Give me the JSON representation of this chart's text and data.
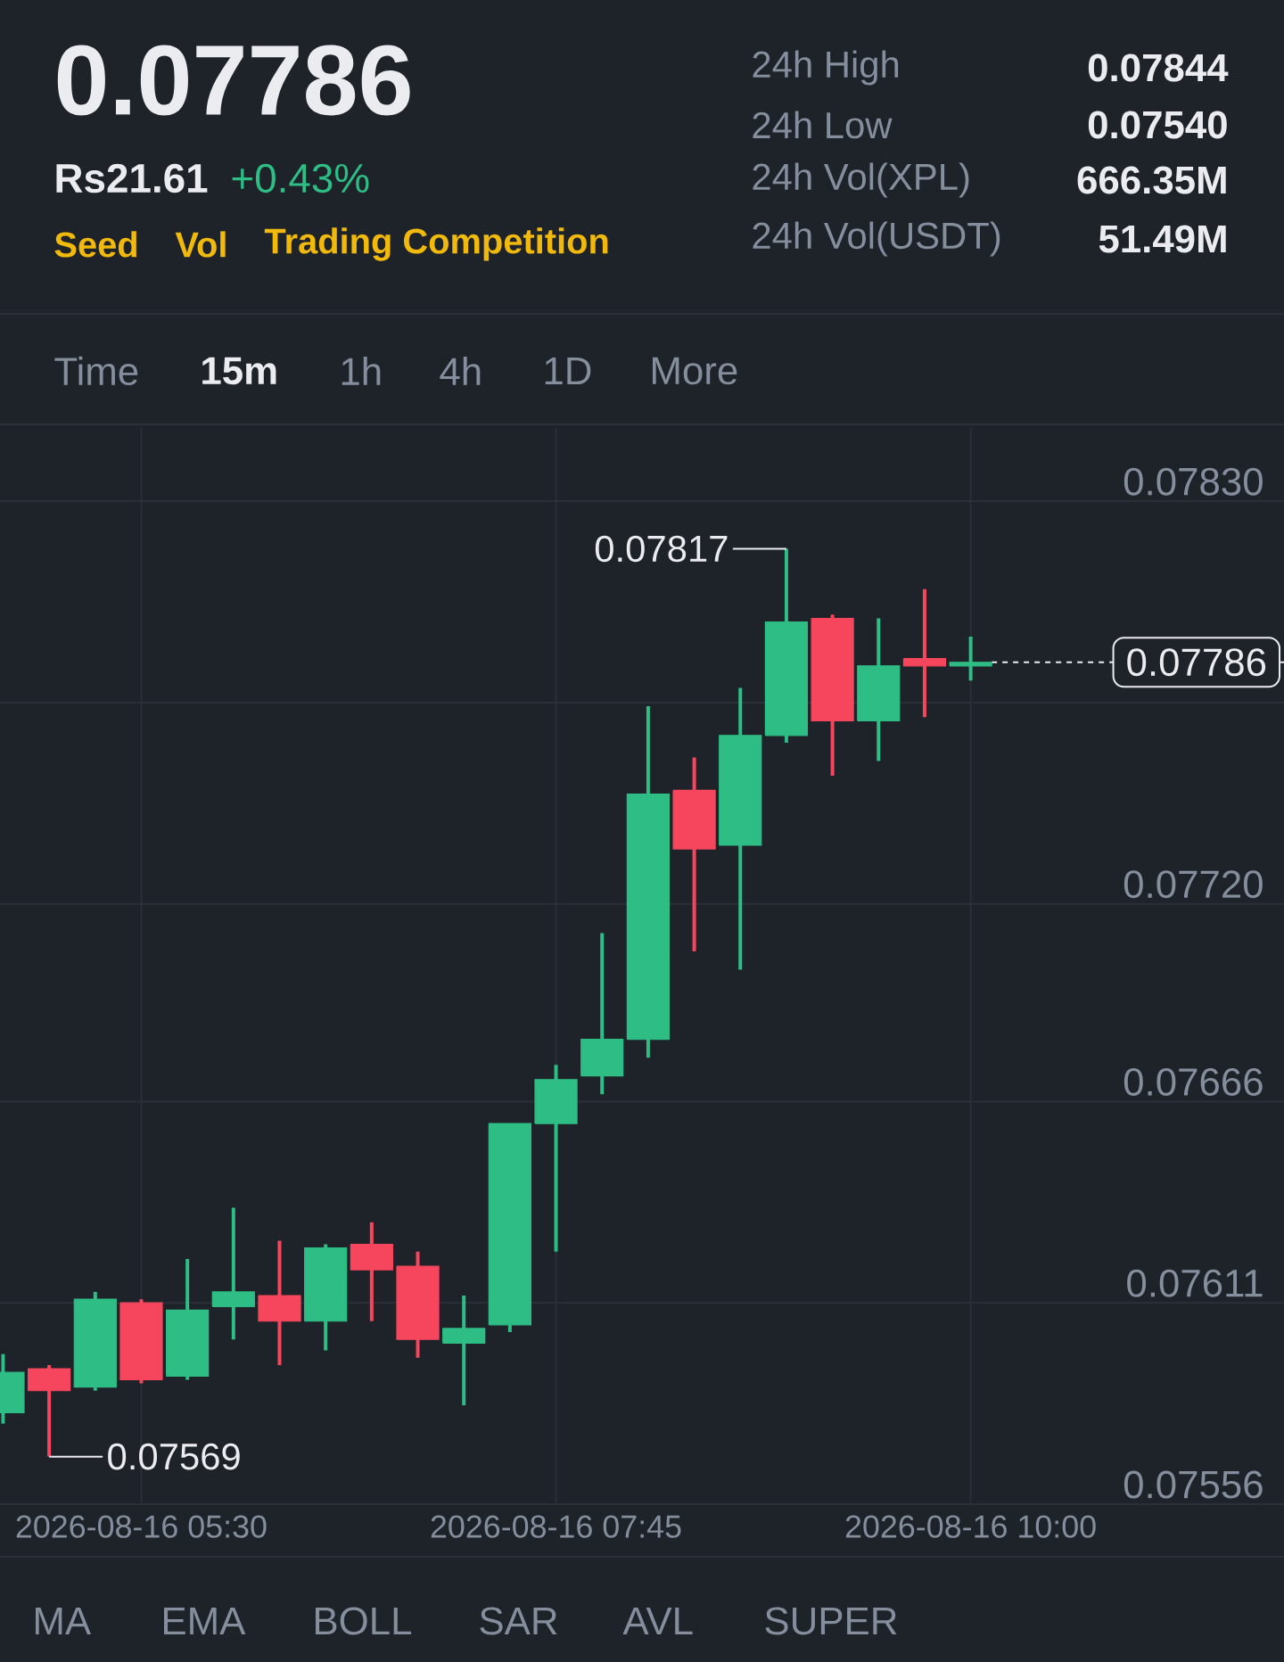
{
  "chart_data": {
    "type": "candlestick",
    "title": "0.07786",
    "subtitle": "Rs21.61",
    "x": [
      "2026-08-16T04:45",
      "2026-08-16T05:00",
      "2026-08-16T05:15",
      "2026-08-16T05:30",
      "2026-08-16T05:45",
      "2026-08-16T06:00",
      "2026-08-16T06:15",
      "2026-08-16T06:30",
      "2026-08-16T06:45",
      "2026-08-16T07:00",
      "2026-08-16T07:15",
      "2026-08-16T07:30",
      "2026-08-16T07:45",
      "2026-08-16T08:00",
      "2026-08-16T08:15",
      "2026-08-16T08:30",
      "2026-08-16T08:45",
      "2026-08-16T09:00",
      "2026-08-16T09:15",
      "2026-08-16T09:30",
      "2026-08-16T09:45",
      "2026-08-16T10:00"
    ],
    "ohlc": [
      [
        0.07581,
        0.07597,
        0.07578,
        0.07592
      ],
      [
        0.07593,
        0.07594,
        0.07569,
        0.07587
      ],
      [
        0.07588,
        0.07614,
        0.07587,
        0.07612
      ],
      [
        0.07611,
        0.07612,
        0.07589,
        0.0759
      ],
      [
        0.07591,
        0.07623,
        0.0759,
        0.07609
      ],
      [
        0.0761,
        0.07637,
        0.07601,
        0.07614
      ],
      [
        0.07613,
        0.07628,
        0.07594,
        0.07606
      ],
      [
        0.07606,
        0.07627,
        0.07598,
        0.07626
      ],
      [
        0.07627,
        0.07633,
        0.07606,
        0.0762
      ],
      [
        0.07621,
        0.07625,
        0.07596,
        0.07601
      ],
      [
        0.076,
        0.07613,
        0.07583,
        0.07604
      ],
      [
        0.07605,
        0.0766,
        0.07603,
        0.0766
      ],
      [
        0.0766,
        0.07676,
        0.07625,
        0.07672
      ],
      [
        0.07673,
        0.07712,
        0.07668,
        0.07683
      ],
      [
        0.07683,
        0.07774,
        0.07678,
        0.0775
      ],
      [
        0.07751,
        0.0776,
        0.07707,
        0.07735
      ],
      [
        0.07736,
        0.07779,
        0.07702,
        0.07766
      ],
      [
        0.07766,
        0.07817,
        0.07764,
        0.07797
      ],
      [
        0.07798,
        0.07799,
        0.07755,
        0.0777
      ],
      [
        0.0777,
        0.07798,
        0.07759,
        0.07785
      ],
      [
        0.07787,
        0.07806,
        0.07771,
        0.07785
      ],
      [
        0.07785,
        0.07793,
        0.07781,
        0.07786
      ]
    ],
    "colors": [
      "#2ebd85",
      "#f6465d",
      "#2ebd85",
      "#f6465d",
      "#2ebd85",
      "#2ebd85",
      "#f6465d",
      "#2ebd85",
      "#f6465d",
      "#f6465d",
      "#2ebd85",
      "#2ebd85",
      "#2ebd85",
      "#2ebd85",
      "#2ebd85",
      "#f6465d",
      "#2ebd85",
      "#2ebd85",
      "#f6465d",
      "#2ebd85",
      "#f6465d",
      "#2ebd85"
    ],
    "xlim": [
      "2026-08-16T04:44",
      "2026-08-16T11:42"
    ],
    "xticks": [
      {
        "value": "2026-08-16T05:30",
        "label": "2026-08-16 05:30"
      },
      {
        "value": "2026-08-16T07:45",
        "label": "2026-08-16 07:45"
      },
      {
        "value": "2026-08-16T10:00",
        "label": "2026-08-16 10:00"
      }
    ],
    "ylim": [
      0.07556,
      0.0785
    ],
    "yticks": [
      0.07556,
      0.07611,
      0.07666,
      {
        "value": 0.0772,
        "label": "0.07720"
      },
      {
        "value": 0.07775,
        "label": null
      },
      {
        "value": 0.0783,
        "label": "0.07830"
      }
    ],
    "grid": true,
    "ref_lines": [
      {
        "axis": "y",
        "value": 0.07786,
        "label": "0.07786",
        "color": "#eaecef",
        "line_style": "dashed"
      }
    ],
    "annotations": [
      "+0.43%",
      "Seed",
      "Vol",
      "Trading Competition",
      "24h High",
      "0.07844",
      "24h Low",
      "0.07540",
      "24h Vol(XPL)",
      "666.35M",
      "24h Vol(USDT)",
      "51.49M",
      "Time",
      "15m",
      "1h",
      "4h",
      "1D",
      "More",
      "MA",
      "EMA",
      "BOLL",
      "SAR",
      "AVL",
      "SUPER",
      {
        "text": "0.07817",
        "x": "2026-08-16T09:00",
        "y": 0.07817
      },
      {
        "text": "0.07569",
        "x": "2026-08-16T05:00",
        "y": 0.07569
      }
    ]
  }
}
